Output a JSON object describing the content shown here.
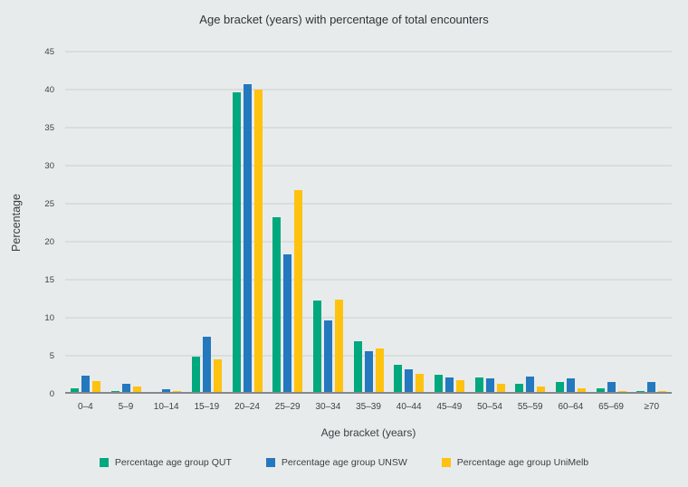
{
  "chart_data": {
    "type": "bar",
    "title": "Age bracket (years) with percentage of total encounters",
    "xlabel": "Age bracket (years)",
    "ylabel": "Percentage",
    "ylim": [
      0,
      45
    ],
    "ytick_step": 5,
    "grid": true,
    "legend_position": "bottom",
    "categories": [
      "0–4",
      "5–9",
      "10–14",
      "15–19",
      "20–24",
      "25–29",
      "30–34",
      "35–39",
      "40–44",
      "45–49",
      "50–54",
      "55–59",
      "60–64",
      "65–69",
      "≥70"
    ],
    "series": [
      {
        "name": "Percentage age group QUT",
        "short": "qut",
        "color": "#00A87D",
        "values": [
          0.7,
          0.3,
          0.1,
          4.9,
          39.7,
          23.2,
          12.3,
          6.9,
          3.8,
          2.5,
          2.2,
          1.3,
          1.6,
          0.7,
          0.4
        ]
      },
      {
        "name": "Percentage age group UNSW",
        "short": "unsw",
        "color": "#2478BD",
        "values": [
          2.4,
          1.3,
          0.6,
          7.5,
          40.7,
          18.3,
          9.7,
          5.6,
          3.2,
          2.1,
          2.0,
          2.3,
          2.0,
          1.6,
          1.6
        ]
      },
      {
        "name": "Percentage age group UniMelb",
        "short": "unimelb",
        "color": "#FFC20E",
        "values": [
          1.7,
          0.9,
          0.4,
          4.5,
          40.0,
          26.8,
          12.4,
          5.9,
          2.6,
          1.8,
          1.3,
          1.0,
          0.7,
          0.3,
          0.3
        ]
      }
    ]
  },
  "colors": {
    "background": "#E8EBEC",
    "gridline": "#CBCFD1",
    "axis_line": "#85888A",
    "text": "#3C3F41"
  }
}
